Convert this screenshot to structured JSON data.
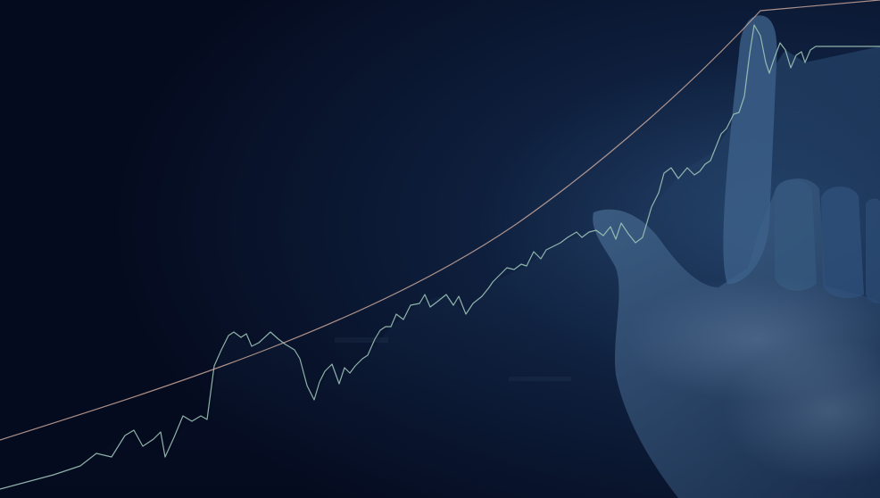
{
  "scene": {
    "subject": "hand-pointing-up-over-rising-stock-chart",
    "colors": {
      "background_dark": "#050b1f",
      "background_mid": "#0b1a36",
      "background_light": "#1e3a5f",
      "hand": "#3b5f85",
      "chart_line": "#9fc4b8",
      "curve_line": "#c9a79a"
    },
    "icons": [
      "hand-pointing-icon",
      "trend-chart-icon"
    ]
  }
}
